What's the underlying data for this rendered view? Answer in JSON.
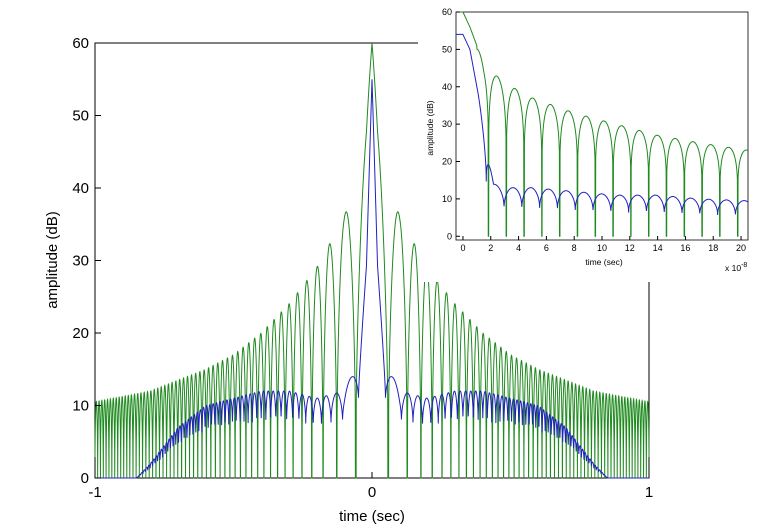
{
  "chart_data": [
    {
      "type": "line",
      "xlabel": "time (sec)",
      "ylabel": "amplitude (dB)",
      "xlim": [
        -1,
        1
      ],
      "ylim": [
        0,
        60
      ],
      "xticks": [
        "-1",
        "0",
        "1"
      ],
      "yticks": [
        "0",
        "10",
        "20",
        "30",
        "40",
        "50",
        "60"
      ],
      "grid": false,
      "series": [
        {
          "color": "#1f8a1f",
          "envelope": {
            "x": [
              -1,
              -0.8,
              -0.6,
              -0.5,
              -0.4,
              -0.3,
              -0.2,
              -0.1,
              -0.05,
              -0.02,
              0,
              0.02,
              0.05,
              0.1,
              0.2,
              0.3,
              0.4,
              0.5,
              0.6,
              0.8,
              1
            ],
            "y": [
              10.5,
              12,
              15,
              17,
              20,
              24,
              29,
              36,
              43,
              50,
              60,
              50,
              43,
              36,
              29,
              24,
              20,
              17,
              15,
              12,
              10.5
            ]
          }
        },
        {
          "color": "#2020c0",
          "envelope": {
            "x": [
              -1,
              -0.85,
              -0.8,
              -0.7,
              -0.6,
              -0.5,
              -0.4,
              -0.3,
              -0.2,
              -0.1,
              -0.05,
              -0.02,
              0,
              0.02,
              0.05,
              0.1,
              0.2,
              0.3,
              0.4,
              0.5,
              0.6,
              0.7,
              0.8,
              0.85,
              1
            ],
            "y": [
              0,
              0,
              2,
              7,
              10,
              11,
              12,
              12,
              11,
              12,
              16,
              30,
              55,
              30,
              16,
              12,
              11,
              12,
              12,
              11,
              10,
              7,
              2,
              0,
              0
            ]
          }
        }
      ]
    },
    {
      "type": "line",
      "xlabel": "time (sec)",
      "ylabel": "amplitude (dB)",
      "xlim": [
        -0.5,
        20.5
      ],
      "ylim": [
        -1,
        60
      ],
      "xticks": [
        "0",
        "2",
        "4",
        "6",
        "8",
        "10",
        "12",
        "14",
        "16",
        "18",
        "20"
      ],
      "yticks": [
        "0",
        "10",
        "20",
        "30",
        "40",
        "50",
        "60"
      ],
      "x_exponent_label": "x 10",
      "x_exponent_power": "-8",
      "grid": false,
      "series": [
        {
          "color": "#1f8a1f",
          "envelope": {
            "x": [
              0,
              0.5,
              1.5,
              3,
              5,
              8,
              11,
              14,
              17,
              20.5
            ],
            "y": [
              60,
              56,
              46,
              41,
              37,
              33,
              30,
              27,
              25,
              23
            ]
          }
        },
        {
          "color": "#2020c0",
          "envelope": {
            "x": [
              0,
              0.5,
              1.5,
              2.2,
              3,
              5,
              8,
              11,
              14,
              17,
              20.5
            ],
            "y": [
              54,
              50,
              30,
              14,
              13,
              13,
              12,
              11,
              11,
              10,
              9.5
            ]
          }
        }
      ]
    }
  ]
}
